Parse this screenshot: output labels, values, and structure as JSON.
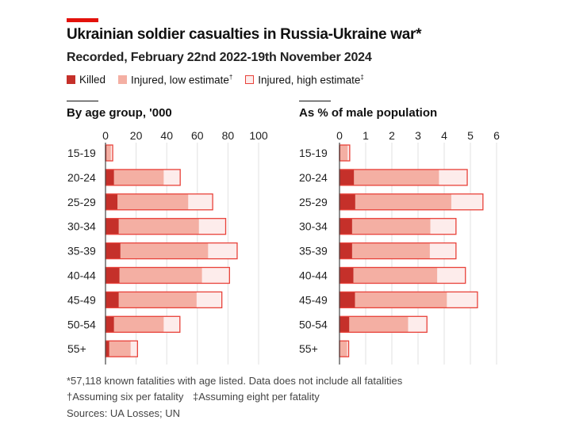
{
  "header": {
    "title": "Ukrainian soldier casualties in Russia-Ukraine war*",
    "subtitle": "Recorded, February 22nd 2022-19th November 2024"
  },
  "legend": [
    {
      "label": "Killed",
      "mark": "",
      "color": "#c5302a"
    },
    {
      "label": "Injured, low estimate",
      "mark": "†",
      "color": "#f4afa3"
    },
    {
      "label": "Injured, high estimate",
      "mark": "‡",
      "color": "#fdeceb"
    }
  ],
  "colors": {
    "killed": "#c5302a",
    "low": "#f4afa3",
    "high": "#fdeceb",
    "outline": "#e8423a",
    "accent": "#e3120b"
  },
  "chart_data": [
    {
      "type": "bar",
      "orientation": "horizontal",
      "stacked": true,
      "title": "By age group, '000",
      "categories": [
        "15-19",
        "20-24",
        "25-29",
        "30-34",
        "35-39",
        "40-44",
        "45-49",
        "50-54",
        "55+"
      ],
      "xlim": [
        0,
        100
      ],
      "ticks": [
        0,
        20,
        40,
        60,
        80,
        100
      ],
      "grid": true,
      "series": [
        {
          "name": "Killed",
          "cumulative": [
            0.6,
            5.5,
            7.8,
            8.6,
            9.7,
            9.1,
            8.6,
            5.5,
            2.4
          ]
        },
        {
          "name": "Injured, low estimate",
          "cumulative": [
            3.5,
            38,
            54,
            61,
            67,
            63,
            59.5,
            38,
            16.4
          ]
        },
        {
          "name": "Injured, high estimate",
          "cumulative": [
            4.7,
            48.8,
            70,
            78.5,
            86,
            81,
            76,
            48.6,
            20.9
          ]
        }
      ]
    },
    {
      "type": "bar",
      "orientation": "horizontal",
      "stacked": true,
      "title": "As % of male population",
      "categories": [
        "15-19",
        "20-24",
        "25-29",
        "30-34",
        "35-39",
        "40-44",
        "45-49",
        "50-54",
        "55+"
      ],
      "xlim": [
        0,
        6
      ],
      "ticks": [
        0,
        1,
        2,
        3,
        4,
        5,
        6
      ],
      "grid": true,
      "series": [
        {
          "name": "Killed",
          "cumulative": [
            0.03,
            0.55,
            0.6,
            0.48,
            0.48,
            0.53,
            0.59,
            0.37,
            0.02
          ]
        },
        {
          "name": "Injured, low estimate",
          "cumulative": [
            0.31,
            3.8,
            4.27,
            3.47,
            3.45,
            3.73,
            4.1,
            2.62,
            0.29
          ]
        },
        {
          "name": "Injured, high estimate",
          "cumulative": [
            0.39,
            4.88,
            5.48,
            4.45,
            4.45,
            4.81,
            5.27,
            3.34,
            0.35
          ]
        }
      ]
    }
  ],
  "footnotes": {
    "note1": "*57,118 known fatalities with age listed. Data does not include all fatalities",
    "note2a": "†Assuming six per fatality",
    "note2b": "‡Assuming eight per fatality",
    "sources": "Sources: UA Losses; UN"
  }
}
